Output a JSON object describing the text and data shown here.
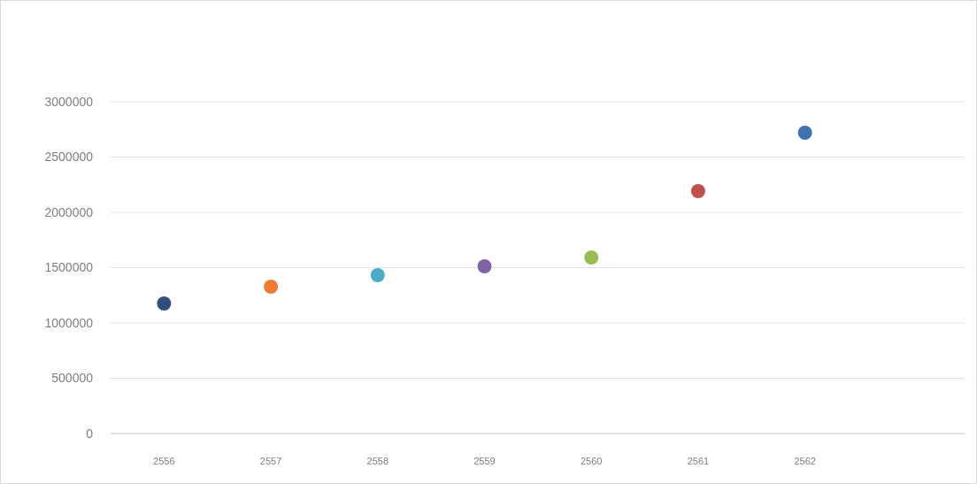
{
  "chart_data": {
    "type": "scatter",
    "categories": [
      "2556",
      "2557",
      "2558",
      "2559",
      "2560",
      "2561",
      "2562"
    ],
    "values": [
      1176000,
      1328000,
      1432000,
      1512000,
      1592000,
      2192000,
      2720000
    ],
    "colors": [
      "#2f4f7f",
      "#ed7d31",
      "#4bacc6",
      "#8064a2",
      "#9bbb59",
      "#c0504d",
      "#3f72b0"
    ],
    "ylim": [
      0,
      3000000
    ],
    "yticks": [
      0,
      500000,
      1000000,
      1500000,
      2000000,
      2500000,
      3000000
    ],
    "grid": "y",
    "marker": "circle"
  }
}
